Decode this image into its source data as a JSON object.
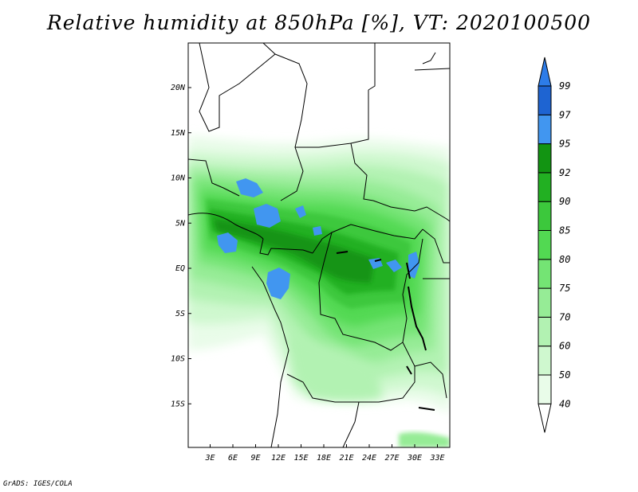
{
  "title": "Relative humidity at 850hPa [%], VT: 2020100500",
  "footer": "GrADS: IGES/COLA",
  "map": {
    "lat_labels": [
      "20N",
      "15N",
      "10N",
      "5N",
      "EQ",
      "5S",
      "10S",
      "15S"
    ],
    "lat_values": [
      20,
      15,
      10,
      5,
      0,
      -5,
      -10,
      -15
    ],
    "lon_labels": [
      "3E",
      "6E",
      "9E",
      "12E",
      "15E",
      "18E",
      "21E",
      "24E",
      "27E",
      "30E",
      "33E"
    ],
    "lon_values": [
      3,
      6,
      9,
      12,
      15,
      18,
      21,
      24,
      27,
      30,
      33
    ]
  },
  "colorbar": {
    "labels": [
      "99",
      "97",
      "95",
      "92",
      "90",
      "85",
      "80",
      "75",
      "70",
      "60",
      "50",
      "40"
    ],
    "segment_colors": [
      "#ffffff",
      "#e9fce9",
      "#cff8cf",
      "#b2f2b2",
      "#96ec96",
      "#74e474",
      "#52d952",
      "#3cc83c",
      "#22b022",
      "#129412",
      "#4196f0",
      "#1e64d2",
      "#2d7ce8"
    ]
  }
}
